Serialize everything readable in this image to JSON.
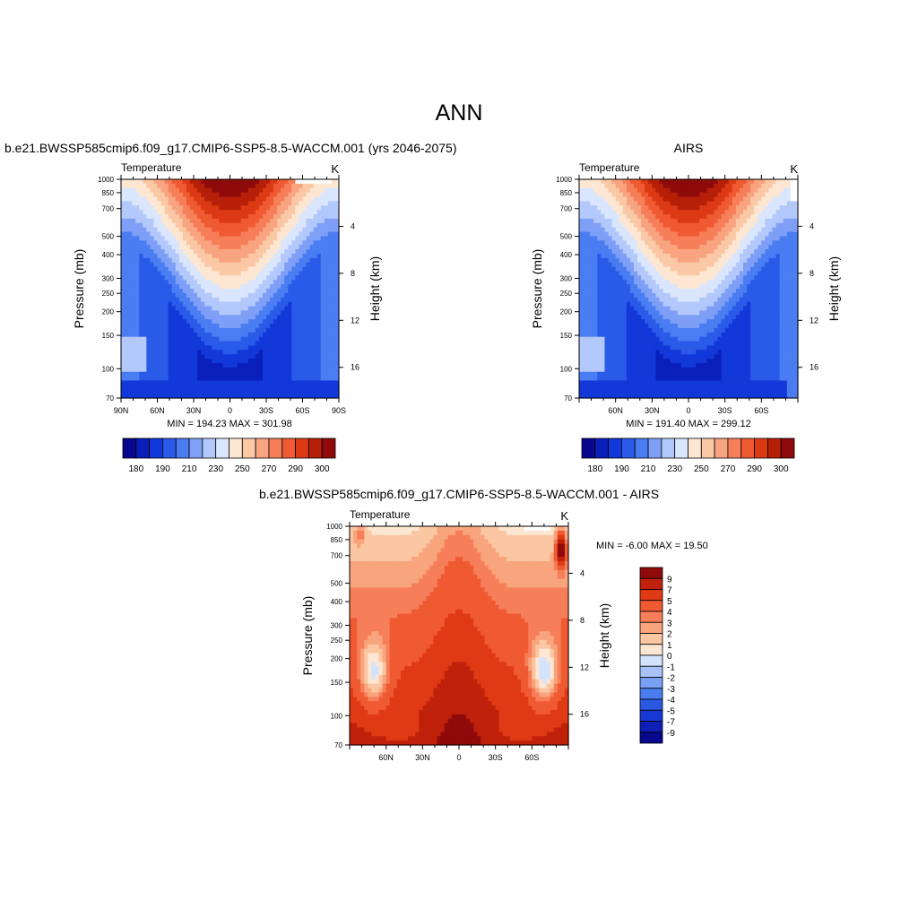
{
  "figure": {
    "title": "ANN"
  },
  "colors": {
    "abs_palette": [
      "#08088f",
      "#0a1fba",
      "#1238d9",
      "#2a5ae8",
      "#4a7cf2",
      "#7f9ff7",
      "#b3c8fb",
      "#d9e6fd",
      "#fde7d2",
      "#fbc8a6",
      "#f9a480",
      "#f67f5a",
      "#f05a32",
      "#dc3a14",
      "#b61f08",
      "#8f0a0a"
    ],
    "diff_palette": [
      "#08088f",
      "#0d1fb4",
      "#1638d3",
      "#2a58e3",
      "#4a7cf0",
      "#7aa0f5",
      "#a9c2f9",
      "#d4e3fc",
      "#fde7d2",
      "#fbc6a2",
      "#f8a47c",
      "#f67f5a",
      "#f05a32",
      "#e03a14",
      "#bf210b",
      "#8f0a0a"
    ]
  },
  "chart_data": [
    {
      "type": "heatmap",
      "panel_title": "b.e21.BWSSP585cmip6.f09_g17.CMIP6-SSP5-8.5-WACCM.001 (yrs 2046-2075)",
      "left_string": "Temperature",
      "right_string": "K",
      "ylabel": "Pressure (mb)",
      "ylabel_right": "Height (km)",
      "x_ticks": [
        "90N",
        "60N",
        "30N",
        "0",
        "30S",
        "60S",
        "90S"
      ],
      "x_range": [
        90,
        -90
      ],
      "y_ticks": [
        "70",
        "100",
        "150",
        "200",
        "250",
        "300",
        "400",
        "500",
        "700",
        "850",
        "1000"
      ],
      "y_range": [
        1000,
        70
      ],
      "y_scale": "log",
      "right_ticks": [
        "4",
        "8",
        "12",
        "16"
      ],
      "min_max": "MIN = 194.23  MAX = 301.98",
      "colorbar_labels": [
        "180",
        "190",
        "210",
        "230",
        "250",
        "270",
        "290",
        "300"
      ],
      "min": 194.23,
      "max": 301.98
    },
    {
      "type": "heatmap",
      "panel_title": "AIRS",
      "left_string": "Temperature",
      "right_string": "K",
      "ylabel": "Pressure (mb)",
      "ylabel_right": "Height (km)",
      "x_ticks": [
        "60N",
        "30N",
        "0",
        "30S",
        "60S"
      ],
      "x_range": [
        90,
        -90
      ],
      "y_ticks": [
        "70",
        "100",
        "150",
        "200",
        "250",
        "300",
        "400",
        "500",
        "700",
        "850",
        "1000"
      ],
      "y_range": [
        1000,
        70
      ],
      "y_scale": "log",
      "right_ticks": [
        "4",
        "8",
        "12",
        "16"
      ],
      "min_max": "MIN = 191.40  MAX = 299.12",
      "colorbar_labels": [
        "180",
        "190",
        "210",
        "230",
        "250",
        "270",
        "290",
        "300"
      ],
      "min": 191.4,
      "max": 299.12
    },
    {
      "type": "heatmap",
      "panel_title": "b.e21.BWSSP585cmip6.f09_g17.CMIP6-SSP5-8.5-WACCM.001 - AIRS",
      "left_string": "Temperature",
      "right_string": "K",
      "ylabel": "Pressure (mb)",
      "ylabel_right": "Height (km)",
      "x_ticks": [
        "60N",
        "30N",
        "0",
        "30S",
        "60S"
      ],
      "x_range": [
        90,
        -90
      ],
      "y_ticks": [
        "70",
        "100",
        "150",
        "200",
        "250",
        "300",
        "400",
        "500",
        "700",
        "850",
        "1000"
      ],
      "y_range": [
        1000,
        70
      ],
      "y_scale": "log",
      "right_ticks": [
        "4",
        "8",
        "12",
        "16"
      ],
      "min_max": "MIN =  -6.00  MAX =  19.50",
      "colorbar_labels": [
        "9",
        "7",
        "5",
        "4",
        "3",
        "2",
        "1",
        "0",
        "-1",
        "-2",
        "-3",
        "-4",
        "-5",
        "-7",
        "-9"
      ],
      "min": -6.0,
      "max": 19.5
    }
  ]
}
